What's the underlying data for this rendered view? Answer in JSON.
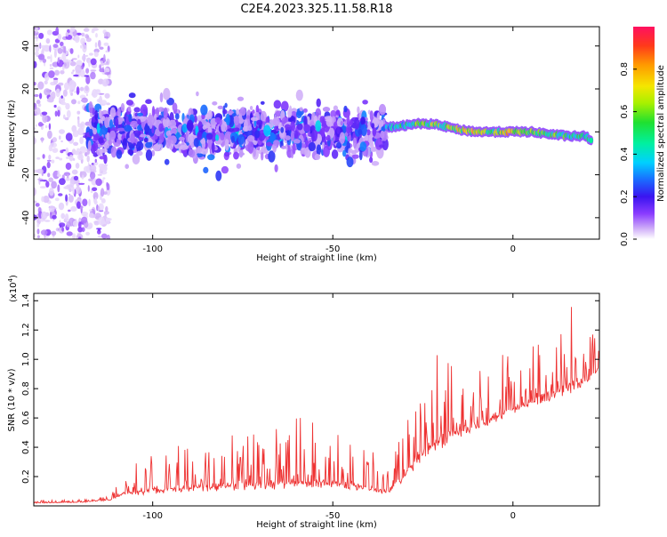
{
  "title": "C2E4.2023.325.11.58.R18",
  "chart_data": [
    {
      "type": "heatmap",
      "xlabel": "Height of straight line (km)",
      "ylabel": "Frequency (Hz)",
      "xlim": [
        -133,
        24
      ],
      "ylim": [
        -50,
        49
      ],
      "x_ticks": [
        -100,
        -50,
        0
      ],
      "y_ticks": [
        -40,
        -20,
        0,
        20,
        40
      ],
      "colorbar": {
        "label": "Normalized spectral amplitude",
        "range": [
          0,
          1
        ],
        "ticks": [
          "0.0",
          "0.2",
          "0.4",
          "0.6",
          "0.8"
        ],
        "colors": [
          "#ffffff",
          "#cfaef8",
          "#8a3cff",
          "#3a14f0",
          "#1a6cff",
          "#00d0ff",
          "#00f0a0",
          "#20e030",
          "#a8f000",
          "#f5e600",
          "#ff9a00",
          "#ff3a1a",
          "#ff1060"
        ]
      },
      "features": {
        "scattered_noise_x_range": [
          -133,
          -112
        ],
        "noise_band_x_range": [
          -118,
          -35
        ],
        "noise_band_halfwidth_hz": 10,
        "ridge": {
          "x": [
            -35,
            -30,
            -25,
            -20,
            -15,
            -10,
            -5,
            0,
            5,
            10,
            15,
            20,
            22
          ],
          "freq": [
            2,
            3,
            4,
            3,
            1,
            0,
            0,
            0,
            0,
            -1,
            -2,
            -2,
            -4
          ],
          "amplitude": [
            0.45,
            0.6,
            0.75,
            0.7,
            0.8,
            0.85,
            0.75,
            0.9,
            0.8,
            0.7,
            0.65,
            0.6,
            0.5
          ]
        }
      }
    },
    {
      "type": "line",
      "xlabel": "Height of straight line (km)",
      "ylabel": "SNR (10 * v/v)",
      "scale_label": "(x10",
      "scale_exponent": "4",
      "scale_close": ")",
      "xlim": [
        -133,
        24
      ],
      "ylim": [
        0,
        14500
      ],
      "x_ticks": [
        -100,
        -50,
        0
      ],
      "y_ticks": [
        "0.2",
        "0.4",
        "0.6",
        "0.8",
        "1.0",
        "1.2",
        "1.4"
      ],
      "series_color": "#ee3333",
      "envelope": {
        "x": [
          -133,
          -120,
          -112,
          -108,
          -100,
          -90,
          -80,
          -70,
          -60,
          -50,
          -40,
          -35,
          -30,
          -25,
          -20,
          -15,
          -10,
          -5,
          0,
          5,
          10,
          15,
          20,
          24
        ],
        "baseline": [
          200,
          250,
          400,
          800,
          1000,
          1200,
          1300,
          1400,
          1500,
          1500,
          1200,
          900,
          2000,
          3500,
          4500,
          5000,
          5500,
          6000,
          6500,
          7000,
          7500,
          8000,
          8500,
          9500
        ],
        "peak": [
          400,
          450,
          700,
          2500,
          3500,
          4500,
          5000,
          5500,
          6500,
          5000,
          4000,
          2500,
          5500,
          9000,
          13200,
          10000,
          9500,
          10500,
          10500,
          11000,
          12500,
          14300,
          12000,
          11800
        ]
      }
    }
  ]
}
